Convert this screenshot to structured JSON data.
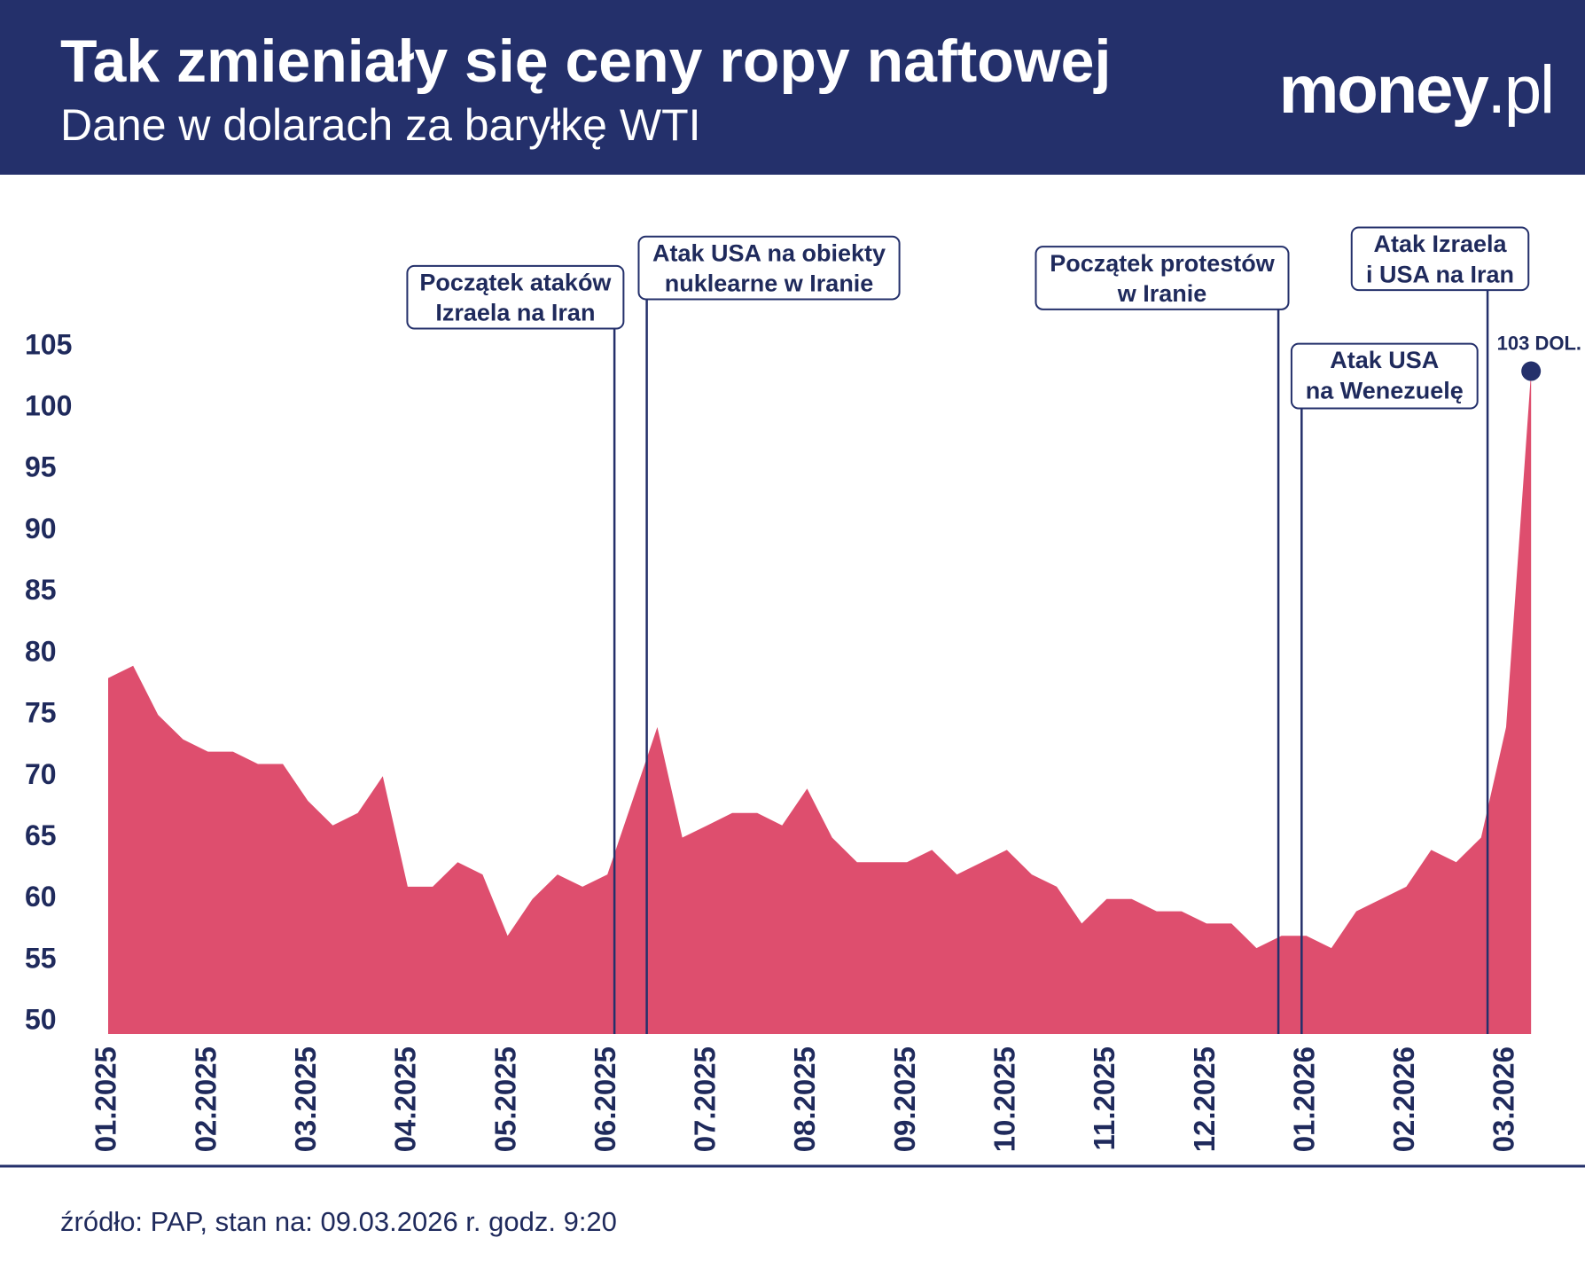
{
  "chart_data": {
    "type": "area",
    "title": "Tak zmieniały się ceny ropy naftowej",
    "subtitle": "Dane w dolarach za baryłkę WTI",
    "logo": {
      "name": "money",
      "domain": ".pl"
    },
    "source": "źródło: PAP, stan na: 09.03.2026 r. godz. 9:20",
    "color": "#de4e6e",
    "categories": [
      "01.2025",
      null,
      null,
      null,
      "02.2025",
      null,
      null,
      null,
      "03.2025",
      null,
      null,
      null,
      "04.2025",
      null,
      null,
      null,
      "05.2025",
      null,
      null,
      null,
      "06.2025",
      null,
      null,
      null,
      "07.2025",
      null,
      null,
      null,
      "08.2025",
      null,
      null,
      null,
      "09.2025",
      null,
      null,
      null,
      "10.2025",
      null,
      null,
      null,
      "11.2025",
      null,
      null,
      null,
      "12.2025",
      null,
      null,
      null,
      "01.2026",
      null,
      null,
      null,
      "02.2026",
      null,
      null,
      null,
      "03.2026",
      null
    ],
    "values": [
      78,
      79,
      75,
      73,
      72,
      72,
      71,
      71,
      68,
      66,
      67,
      70,
      61,
      61,
      63,
      62,
      57,
      60,
      62,
      61,
      62,
      68,
      74,
      65,
      66,
      67,
      67,
      66,
      69,
      65,
      63,
      63,
      63,
      64,
      62,
      63,
      64,
      62,
      61,
      58,
      60,
      60,
      59,
      59,
      58,
      58,
      56,
      57,
      57,
      56,
      59,
      60,
      61,
      64,
      63,
      65,
      74,
      103
    ],
    "value_labels": [
      null,
      null,
      null,
      null,
      null,
      null,
      null,
      null,
      null,
      null,
      null,
      null,
      null,
      null,
      null,
      null,
      null,
      null,
      null,
      null,
      null,
      null,
      null,
      null,
      null,
      null,
      null,
      null,
      null,
      null,
      null,
      null,
      null,
      null,
      null,
      null,
      null,
      null,
      null,
      null,
      null,
      null,
      null,
      null,
      null,
      null,
      null,
      null,
      null,
      null,
      null,
      null,
      null,
      null,
      null,
      null,
      null,
      "103 DOL."
    ],
    "ylim": [
      49,
      106
    ],
    "yticks": [
      50,
      55,
      60,
      65,
      70,
      75,
      80,
      85,
      90,
      95,
      100,
      105
    ],
    "annotations": [
      {
        "lines": [
          "Początek ataków",
          "Izraela na Iran"
        ]
      },
      {
        "lines": [
          "Atak USA na obiekty",
          "nuklearne w Iranie"
        ]
      },
      {
        "lines": [
          "Początek protestów",
          "w Iranie"
        ]
      },
      {
        "lines": [
          "Atak USA",
          "na Wenezuelę"
        ]
      },
      {
        "lines": [
          "Atak Izraela",
          "i USA na Iran"
        ]
      }
    ]
  }
}
